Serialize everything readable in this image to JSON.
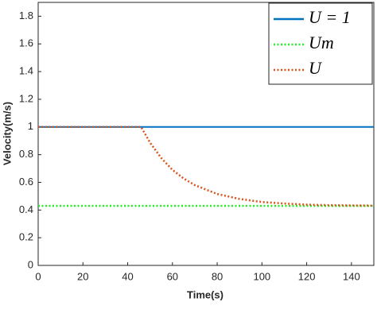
{
  "chart_data": {
    "type": "line",
    "xlabel": "Time(s)",
    "ylabel": "Velocity(m/s)",
    "x": [
      0,
      46,
      50,
      55,
      60,
      65,
      70,
      80,
      90,
      100,
      110,
      120,
      130,
      140,
      150
    ],
    "series": [
      {
        "name": "U = 1",
        "color": "#0072bd",
        "style": "solid",
        "values": [
          1,
          1,
          1,
          1,
          1,
          1,
          1,
          1,
          1,
          1,
          1,
          1,
          1,
          1,
          1
        ]
      },
      {
        "name": "Um",
        "color": "#22ee22",
        "style": "dotted",
        "values": [
          0.43,
          0.43,
          0.43,
          0.43,
          0.43,
          0.43,
          0.43,
          0.43,
          0.43,
          0.43,
          0.43,
          0.43,
          0.43,
          0.43,
          0.43
        ]
      },
      {
        "name": "U",
        "color": "#d95319",
        "style": "dotted",
        "values": [
          1,
          1,
          0.887,
          0.776,
          0.69,
          0.628,
          0.58,
          0.516,
          0.48,
          0.458,
          0.447,
          0.439,
          0.435,
          0.433,
          0.432
        ]
      }
    ],
    "xlim": [
      0,
      150
    ],
    "xticks": [
      0,
      20,
      40,
      60,
      80,
      100,
      120,
      140
    ],
    "ylim": [
      0,
      1.9
    ],
    "yticks": [
      0,
      0.2,
      0.4,
      0.6,
      0.8,
      1,
      1.2,
      1.4,
      1.6,
      1.8
    ],
    "grid": false,
    "legend": "upper right"
  }
}
